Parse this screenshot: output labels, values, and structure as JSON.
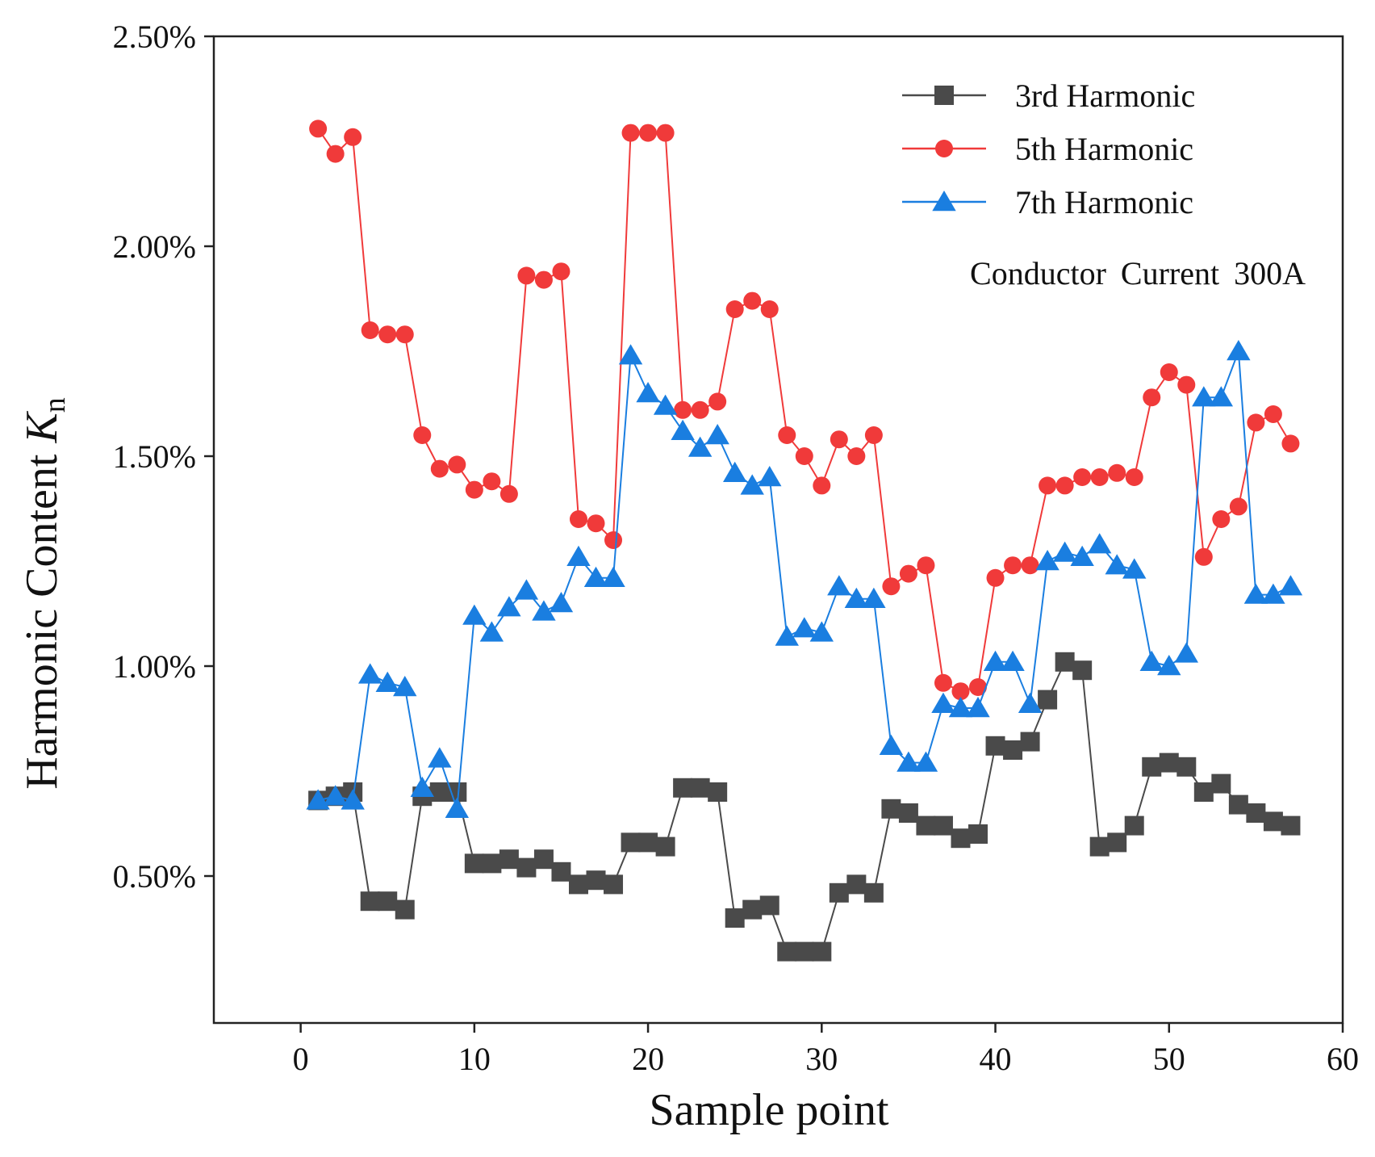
{
  "chart_data": {
    "type": "line",
    "xlabel": "Sample point",
    "ylabel_main": "Harmonic Content ",
    "ylabel_symbol": "K",
    "ylabel_subscript": "n",
    "xlim": [
      -5,
      60
    ],
    "ylim": [
      0.0015,
      0.025
    ],
    "xticks": [
      0,
      10,
      20,
      30,
      40,
      50,
      60
    ],
    "xtick_labels": [
      "0",
      "10",
      "20",
      "30",
      "40",
      "50",
      "60"
    ],
    "yticks": [
      0.005,
      0.01,
      0.015,
      0.02,
      0.025
    ],
    "ytick_labels": [
      "0.50%",
      "1.00%",
      "1.50%",
      "2.00%",
      "2.50%"
    ],
    "annotation": "Conductor Current 300A",
    "legend_position": "top-right",
    "x": [
      1,
      2,
      3,
      4,
      5,
      6,
      7,
      8,
      9,
      10,
      11,
      12,
      13,
      14,
      15,
      16,
      17,
      18,
      19,
      20,
      21,
      22,
      23,
      24,
      25,
      26,
      27,
      28,
      29,
      30,
      31,
      32,
      33,
      34,
      35,
      36,
      37,
      38,
      39,
      40,
      41,
      42,
      43,
      44,
      45,
      46,
      47,
      48,
      49,
      50,
      51,
      52,
      53,
      54,
      55,
      56,
      57
    ],
    "series": [
      {
        "name": "3rd Harmonic",
        "color": "#4a4a4a",
        "marker": "square",
        "values": [
          0.0068,
          0.0069,
          0.007,
          0.0044,
          0.0044,
          0.0042,
          0.0069,
          0.007,
          0.007,
          0.0053,
          0.0053,
          0.0054,
          0.0052,
          0.0054,
          0.0051,
          0.0048,
          0.0049,
          0.0048,
          0.0058,
          0.0058,
          0.0057,
          0.0071,
          0.0071,
          0.007,
          0.004,
          0.0042,
          0.0043,
          0.0032,
          0.0032,
          0.0032,
          0.0046,
          0.0048,
          0.0046,
          0.0066,
          0.0065,
          0.0062,
          0.0062,
          0.0059,
          0.006,
          0.0081,
          0.008,
          0.0082,
          0.0092,
          0.0101,
          0.0099,
          0.0057,
          0.0058,
          0.0062,
          0.0076,
          0.0077,
          0.0076,
          0.007,
          0.0072,
          0.0067,
          0.0065,
          0.0063,
          0.0062
        ]
      },
      {
        "name": "5th Harmonic",
        "color": "#f03a3a",
        "marker": "circle",
        "values": [
          0.0228,
          0.0222,
          0.0226,
          0.018,
          0.0179,
          0.0179,
          0.0155,
          0.0147,
          0.0148,
          0.0142,
          0.0144,
          0.0141,
          0.0193,
          0.0192,
          0.0194,
          0.0135,
          0.0134,
          0.013,
          0.0227,
          0.0227,
          0.0227,
          0.0161,
          0.0161,
          0.0163,
          0.0185,
          0.0187,
          0.0185,
          0.0155,
          0.015,
          0.0143,
          0.0154,
          0.015,
          0.0155,
          0.0119,
          0.0122,
          0.0124,
          0.0096,
          0.0094,
          0.0095,
          0.0121,
          0.0124,
          0.0124,
          0.0143,
          0.0143,
          0.0145,
          0.0145,
          0.0146,
          0.0145,
          0.0164,
          0.017,
          0.0167,
          0.0126,
          0.0135,
          0.0138,
          0.0158,
          0.016,
          0.0153
        ]
      },
      {
        "name": "7th Harmonic",
        "color": "#1a7ee0",
        "marker": "triangle",
        "values": [
          0.0068,
          0.0069,
          0.0068,
          0.0098,
          0.0096,
          0.0095,
          0.0071,
          0.0078,
          0.0066,
          0.0112,
          0.0108,
          0.0114,
          0.0118,
          0.0113,
          0.0115,
          0.0126,
          0.0121,
          0.0121,
          0.0174,
          0.0165,
          0.0162,
          0.0156,
          0.0152,
          0.0155,
          0.0146,
          0.0143,
          0.0145,
          0.0107,
          0.0109,
          0.0108,
          0.0119,
          0.0116,
          0.0116,
          0.0081,
          0.0077,
          0.0077,
          0.0091,
          0.009,
          0.009,
          0.0101,
          0.0101,
          0.0091,
          0.0125,
          0.0127,
          0.0126,
          0.0129,
          0.0124,
          0.0123,
          0.0101,
          0.01,
          0.0103,
          0.0164,
          0.0164,
          0.0175,
          0.0117,
          0.0117,
          0.0119
        ]
      }
    ]
  }
}
